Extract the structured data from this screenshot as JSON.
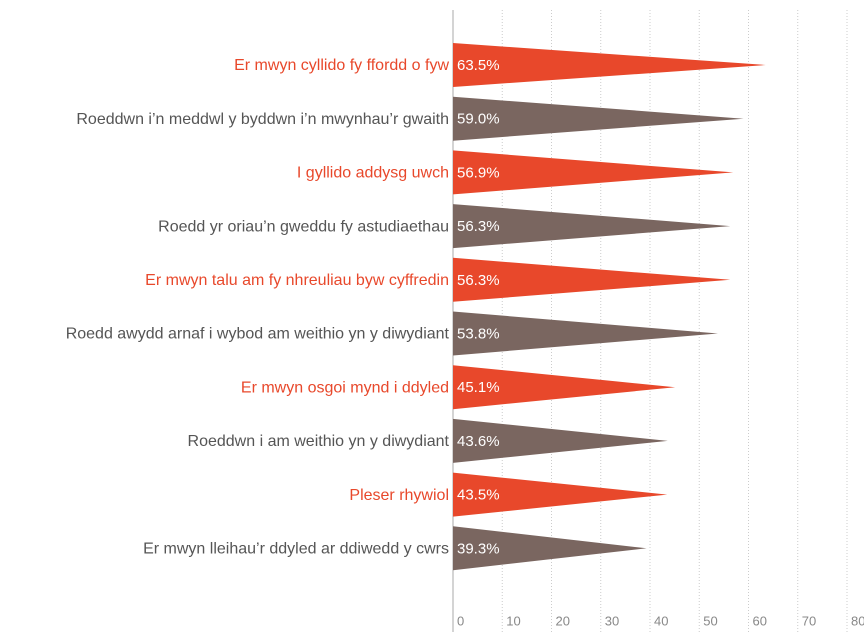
{
  "chart_data": {
    "type": "bar",
    "orientation": "horizontal",
    "mark_shape": "triangle",
    "categories": [
      "Er mwyn cyllido fy ffordd o fyw",
      "Roeddwn i’n meddwl y byddwn i’n mwynhau’r gwaith",
      "I gyllido addysg uwch",
      "Roedd yr oriau’n gweddu fy astudiaethau",
      "Er mwyn talu am fy nhreuliau byw cyffredin",
      "Roedd awydd arnaf i wybod am weithio yn y diwydiant",
      "Er mwyn osgoi mynd i ddyled",
      "Roeddwn i am weithio yn y diwydiant",
      "Pleser rhywiol",
      "Er mwyn lleihau’r ddyled ar ddiwedd y cwrs"
    ],
    "values": [
      63.5,
      59.0,
      56.9,
      56.3,
      56.3,
      53.8,
      45.1,
      43.6,
      43.5,
      39.3
    ],
    "value_labels": [
      "63.5%",
      "59.0%",
      "56.9%",
      "56.3%",
      "56.3%",
      "53.8%",
      "45.1%",
      "43.6%",
      "43.5%",
      "39.3%"
    ],
    "colors": [
      "#e8482b",
      "#7a6660",
      "#e8482b",
      "#7a6660",
      "#e8482b",
      "#7a6660",
      "#e8482b",
      "#7a6660",
      "#e8482b",
      "#7a6660"
    ],
    "label_colors": [
      "#e8482b",
      "#555555",
      "#e8482b",
      "#555555",
      "#e8482b",
      "#555555",
      "#e8482b",
      "#555555",
      "#e8482b",
      "#555555"
    ],
    "xlim": [
      0,
      80
    ],
    "xticks": [
      0,
      10,
      20,
      30,
      40,
      50,
      60,
      70,
      80
    ],
    "grid": true
  }
}
